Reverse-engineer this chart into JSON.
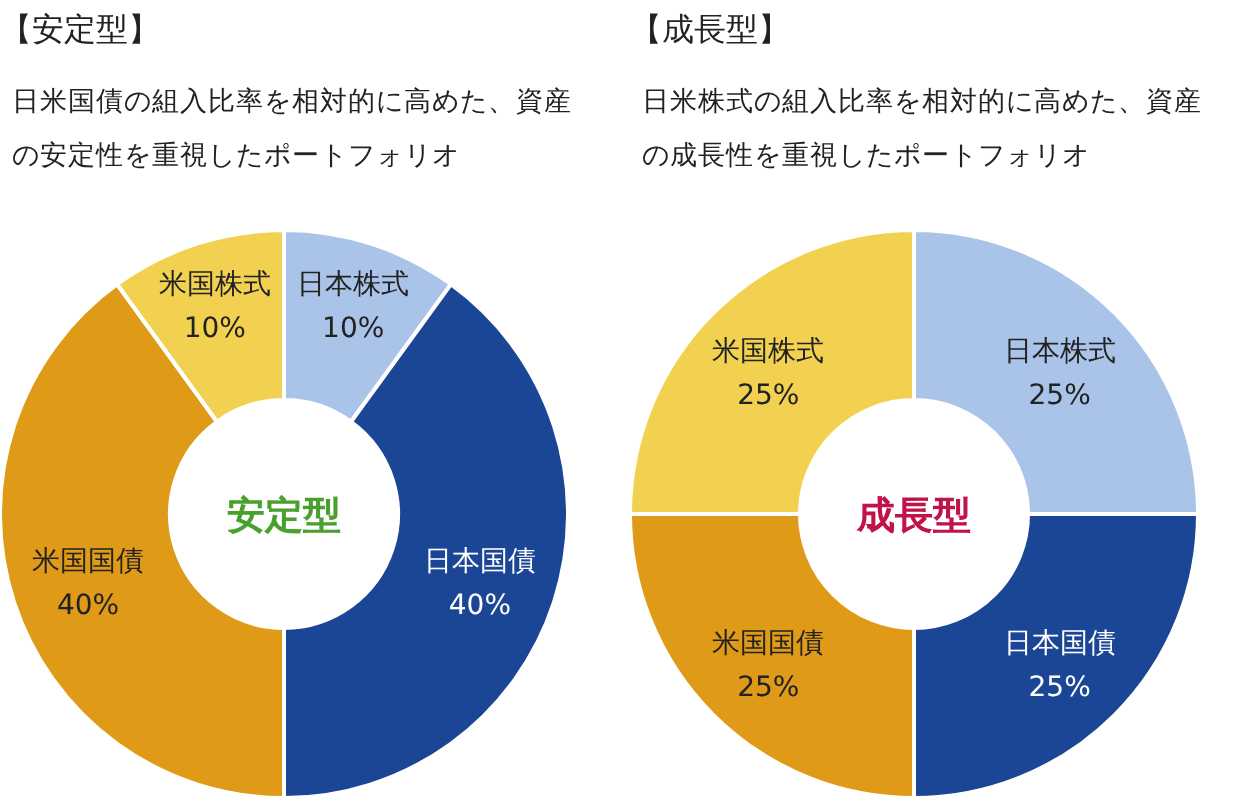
{
  "chart_data": [
    {
      "type": "donut",
      "title": "【安定型】",
      "subtitle": "日米国債の組入比率を相対的に高めた、資産の安定性を重視したポートフォリオ",
      "categories": [
        "日本株式",
        "日本国債",
        "米国国債",
        "米国株式"
      ],
      "values": [
        10,
        40,
        40,
        10
      ],
      "value_labels": [
        "10%",
        "40%",
        "40%",
        "10%"
      ],
      "colors": [
        "#a9c4e8",
        "#1b4595",
        "#df9a17",
        "#f2d150"
      ],
      "annotations": [
        "安定型"
      ]
    },
    {
      "type": "donut",
      "title": "【成長型】",
      "subtitle": "日米株式の組入比率を相対的に高めた、資産の成長性を重視したポートフォリオ",
      "categories": [
        "日本株式",
        "日本国債",
        "米国国債",
        "米国株式"
      ],
      "values": [
        25,
        25,
        25,
        25
      ],
      "value_labels": [
        "25%",
        "25%",
        "25%",
        "25%"
      ],
      "colors": [
        "#a9c4e8",
        "#1b4595",
        "#df9a17",
        "#f2d150"
      ],
      "annotations": [
        "成長型"
      ]
    }
  ]
}
